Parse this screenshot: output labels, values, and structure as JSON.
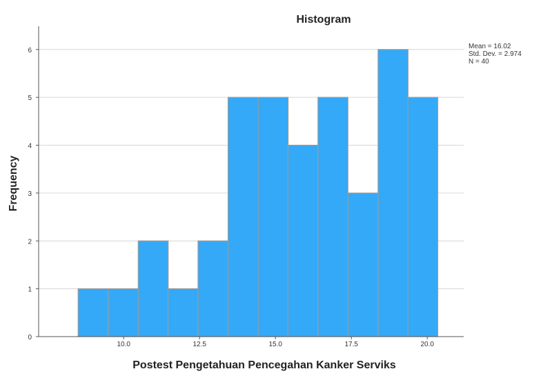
{
  "chart_data": {
    "type": "bar",
    "title": "Histogram",
    "xlabel": "Postest Pengetahuan Pencegahan Kanker Serviks",
    "ylabel": "Frequency",
    "bin_width": 0.9875,
    "bin_starts": [
      8.5,
      9.49,
      10.48,
      11.46,
      12.45,
      13.44,
      14.43,
      15.41,
      16.4,
      17.39,
      18.38,
      19.36
    ],
    "values": [
      1,
      1,
      2,
      1,
      2,
      5,
      5,
      4,
      5,
      3,
      6,
      5
    ],
    "xlim": [
      7.2,
      21.2
    ],
    "ylim": [
      0,
      6.4
    ],
    "x_ticks": [
      10.0,
      12.5,
      15.0,
      17.5,
      20.0
    ],
    "x_tick_labels": [
      "10.0",
      "12.5",
      "15.0",
      "17.5",
      "20.0"
    ],
    "y_ticks": [
      0,
      1,
      2,
      3,
      4,
      5,
      6
    ],
    "y_tick_labels": [
      "0",
      "1",
      "2",
      "3",
      "4",
      "5",
      "6"
    ],
    "grid": "horizontal",
    "bar_color": "#33a9f8",
    "bar_edge_color": "#9b9b9b",
    "stats": {
      "mean": "Mean = 16.02",
      "std_dev": "Std. Dev. = 2.974",
      "n": "N = 40"
    }
  }
}
